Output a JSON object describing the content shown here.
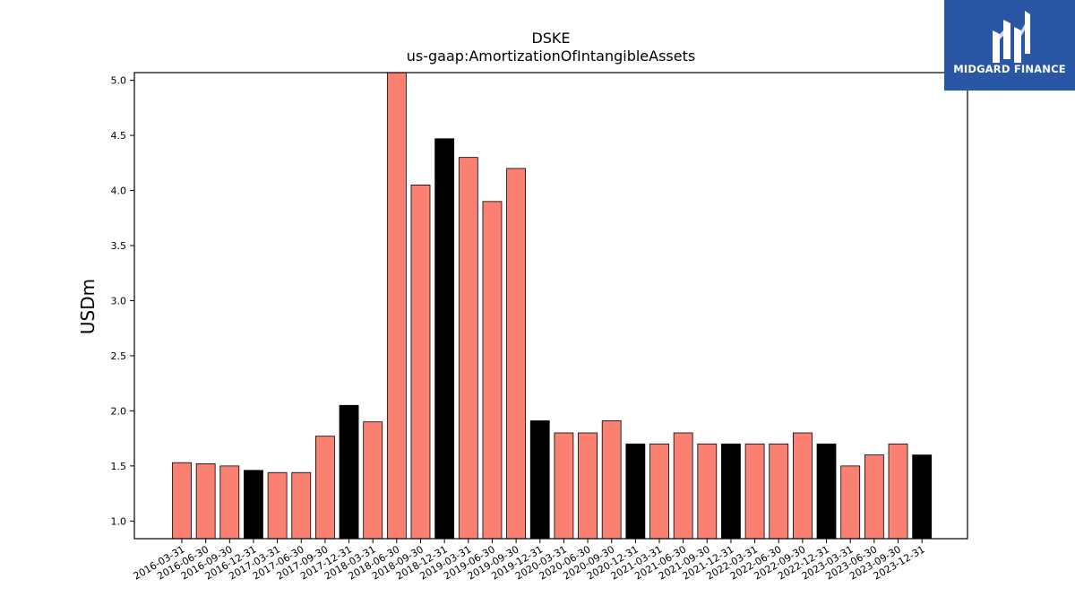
{
  "logo": {
    "text": "MIDGARD FINANCE"
  },
  "chart_data": {
    "type": "bar",
    "title": "DSKE",
    "subtitle": "us-gaap:AmortizationOfIntangibleAssets",
    "xlabel": "",
    "ylabel": "USDm",
    "ylim": [
      0.84,
      5.07
    ],
    "yticks": [
      1.0,
      1.5,
      2.0,
      2.5,
      3.0,
      3.5,
      4.0,
      4.5,
      5.0
    ],
    "grid": false,
    "colors": {
      "quarter": "#fa8072",
      "year_end": "#000000",
      "edge": "#000000"
    },
    "categories": [
      "2016-03-31",
      "2016-06-30",
      "2016-09-30",
      "2016-12-31",
      "2017-03-31",
      "2017-06-30",
      "2017-09-30",
      "2017-12-31",
      "2018-03-31",
      "2018-06-30",
      "2018-09-30",
      "2018-12-31",
      "2019-03-31",
      "2019-06-30",
      "2019-09-30",
      "2019-12-31",
      "2020-03-31",
      "2020-06-30",
      "2020-09-30",
      "2020-12-31",
      "2021-03-31",
      "2021-06-30",
      "2021-09-30",
      "2021-12-31",
      "2022-03-31",
      "2022-06-30",
      "2022-09-30",
      "2022-12-31",
      "2023-03-31",
      "2023-06-30",
      "2023-09-30",
      "2023-12-31"
    ],
    "values": [
      1.53,
      1.52,
      1.5,
      1.46,
      1.44,
      1.44,
      1.77,
      2.05,
      1.9,
      5.1,
      4.05,
      4.47,
      4.3,
      3.9,
      4.2,
      1.91,
      1.8,
      1.8,
      1.91,
      1.7,
      1.7,
      1.8,
      1.7,
      1.7,
      1.7,
      1.7,
      1.8,
      1.7,
      1.5,
      1.6,
      1.7,
      1.6
    ]
  }
}
